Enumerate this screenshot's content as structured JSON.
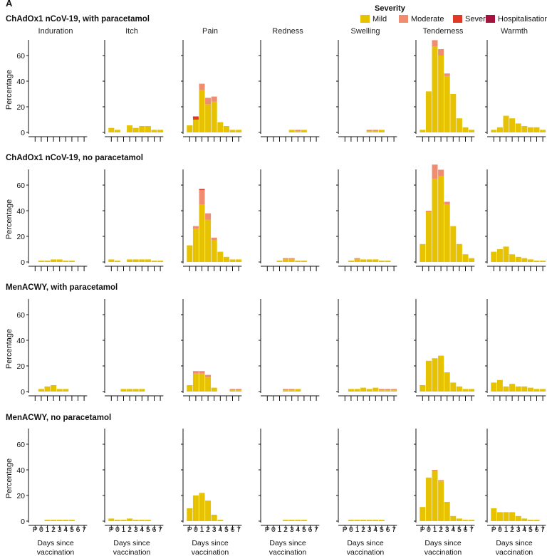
{
  "panel_label": "A",
  "legend": {
    "title": "Severity",
    "items": [
      {
        "label": "Mild",
        "color": "#e6c200"
      },
      {
        "label": "Moderate",
        "color": "#f08c6f"
      },
      {
        "label": "Severe",
        "color": "#e03a26"
      },
      {
        "label": "Hospitalisation",
        "color": "#a5123e"
      }
    ]
  },
  "chart_data": {
    "type": "bar",
    "stacked": true,
    "ylabel": "Percentage",
    "xlabel": "Days since vaccination",
    "x_ticks": [
      "P",
      "0",
      "1",
      "2",
      "3",
      "4",
      "5",
      "6",
      "7"
    ],
    "y_ticks": [
      0,
      20,
      40,
      60
    ],
    "ylim": [
      0,
      77
    ],
    "columns": [
      "Induration",
      "Itch",
      "Pain",
      "Redness",
      "Swelling",
      "Tenderness",
      "Warmth"
    ],
    "series_names": [
      "Mild",
      "Moderate",
      "Severe",
      "Hospitalisation"
    ],
    "rows": [
      {
        "title": "ChAdOx1 nCoV-19, with paracetamol",
        "panels": [
          {
            "column": "Induration",
            "mild": [
              0,
              0,
              0,
              0,
              0,
              0,
              0,
              0,
              0
            ],
            "moderate": [
              0,
              0,
              0,
              0,
              0,
              0,
              0,
              0,
              0
            ],
            "severe": [
              0,
              0,
              0,
              0,
              0,
              0,
              0,
              0,
              0
            ]
          },
          {
            "column": "Itch",
            "mild": [
              3.5,
              2,
              0,
              5.5,
              3.5,
              5,
              5,
              2,
              2
            ],
            "moderate": [
              0,
              0,
              0,
              0,
              0,
              0,
              0,
              0,
              0
            ],
            "severe": [
              0,
              0,
              0,
              0,
              0,
              0,
              0,
              0,
              0
            ]
          },
          {
            "column": "Pain",
            "mild": [
              5.5,
              10,
              33,
              22,
              24,
              8,
              5,
              2,
              2
            ],
            "moderate": [
              0,
              0,
              5,
              5,
              4,
              0,
              0,
              0,
              0
            ],
            "severe": [
              0,
              2.5,
              0,
              0,
              0,
              0,
              0,
              0,
              0
            ]
          },
          {
            "column": "Redness",
            "mild": [
              0,
              0,
              0,
              0,
              2,
              1,
              2,
              0,
              0
            ],
            "moderate": [
              0,
              0,
              0,
              0,
              0,
              1,
              0,
              0,
              0
            ],
            "severe": [
              0,
              0,
              0,
              0,
              0,
              0,
              0,
              0,
              0
            ]
          },
          {
            "column": "Swelling",
            "mild": [
              0,
              0,
              0,
              0,
              1,
              1,
              2,
              0,
              0
            ],
            "moderate": [
              0,
              0,
              0,
              0,
              1,
              1,
              0,
              0,
              0
            ],
            "severe": [
              0,
              0,
              0,
              0,
              0,
              0,
              0,
              0,
              0
            ]
          },
          {
            "column": "Tenderness",
            "mild": [
              2,
              32,
              67,
              60,
              44,
              30,
              11,
              4,
              2
            ],
            "moderate": [
              0,
              0,
              5,
              5,
              2,
              0,
              0,
              0,
              0
            ],
            "severe": [
              0,
              0,
              0,
              0,
              0,
              0,
              0,
              0,
              0
            ]
          },
          {
            "column": "Warmth",
            "mild": [
              2,
              4,
              13,
              11,
              7,
              5,
              4,
              4,
              2
            ],
            "moderate": [
              0,
              0,
              0,
              0,
              0,
              0,
              0,
              0,
              0
            ],
            "severe": [
              0,
              0,
              0,
              0,
              0,
              0,
              0,
              0,
              0
            ]
          }
        ]
      },
      {
        "title": "ChAdOx1 nCoV-19, no paracetamol",
        "panels": [
          {
            "column": "Induration",
            "mild": [
              0,
              1,
              1,
              2,
              2,
              1,
              1,
              0,
              0
            ],
            "moderate": [
              0,
              0,
              0,
              0,
              0,
              0,
              0,
              0,
              0
            ],
            "severe": [
              0,
              0,
              0,
              0,
              0,
              0,
              0,
              0,
              0
            ]
          },
          {
            "column": "Itch",
            "mild": [
              2,
              1,
              0,
              2,
              2,
              2,
              2,
              1,
              1
            ],
            "moderate": [
              0,
              0,
              0,
              0,
              0,
              0,
              0,
              0,
              0
            ],
            "severe": [
              0,
              0,
              0,
              0,
              0,
              0,
              0,
              0,
              0
            ]
          },
          {
            "column": "Pain",
            "mild": [
              13,
              26,
              45,
              33,
              17,
              8,
              4,
              2,
              2
            ],
            "moderate": [
              0,
              2,
              11,
              5,
              2,
              0,
              0,
              0,
              0
            ],
            "severe": [
              0,
              0,
              1,
              0,
              0,
              0,
              0,
              0,
              0
            ]
          },
          {
            "column": "Redness",
            "mild": [
              0,
              0,
              1,
              2,
              2,
              1,
              1,
              0,
              0
            ],
            "moderate": [
              0,
              0,
              0,
              1,
              1,
              0,
              0,
              0,
              0
            ],
            "severe": [
              0,
              0,
              0,
              0,
              0,
              0,
              0,
              0,
              0
            ]
          },
          {
            "column": "Swelling",
            "mild": [
              0,
              1,
              2,
              2,
              2,
              2,
              1,
              1,
              0
            ],
            "moderate": [
              0,
              0,
              1,
              0,
              0,
              0,
              0,
              0,
              0
            ],
            "severe": [
              0,
              0,
              0,
              0,
              0,
              0,
              0,
              0,
              0
            ]
          },
          {
            "column": "Tenderness",
            "mild": [
              14,
              39,
              65,
              67,
              45,
              28,
              14,
              6,
              3
            ],
            "moderate": [
              0,
              1,
              11,
              5,
              2,
              0,
              0,
              0,
              0
            ],
            "severe": [
              0,
              0,
              0,
              0,
              0,
              0,
              0,
              0,
              0
            ]
          },
          {
            "column": "Warmth",
            "mild": [
              8,
              10,
              12,
              6,
              4,
              3,
              2,
              1,
              1
            ],
            "moderate": [
              0,
              0,
              0,
              0,
              0,
              0,
              0,
              0,
              0
            ],
            "severe": [
              0,
              0,
              0,
              0,
              0,
              0,
              0,
              0,
              0
            ]
          }
        ]
      },
      {
        "title": "MenACWY, with paracetamol",
        "panels": [
          {
            "column": "Induration",
            "mild": [
              0,
              2,
              4,
              5,
              2,
              2,
              0,
              0,
              0
            ],
            "moderate": [
              0,
              0,
              0,
              0,
              0,
              0,
              0,
              0,
              0
            ],
            "severe": [
              0,
              0,
              0,
              0,
              0,
              0,
              0,
              0,
              0
            ]
          },
          {
            "column": "Itch",
            "mild": [
              0,
              0,
              2,
              2,
              2,
              2,
              0,
              0,
              0
            ],
            "moderate": [
              0,
              0,
              0,
              0,
              0,
              0,
              0,
              0,
              0
            ],
            "severe": [
              0,
              0,
              0,
              0,
              0,
              0,
              0,
              0,
              0
            ]
          },
          {
            "column": "Pain",
            "mild": [
              5,
              14,
              14,
              11,
              3,
              0,
              0,
              1,
              1
            ],
            "moderate": [
              0,
              2,
              2,
              2,
              0,
              0,
              0,
              1,
              1
            ],
            "severe": [
              0,
              0,
              0,
              0,
              0,
              0,
              0,
              0,
              0
            ]
          },
          {
            "column": "Redness",
            "mild": [
              0,
              0,
              0,
              1,
              1,
              2,
              0,
              0,
              0
            ],
            "moderate": [
              0,
              0,
              0,
              1,
              1,
              0,
              0,
              0,
              0
            ],
            "severe": [
              0,
              0,
              0,
              0,
              0,
              0,
              0,
              0,
              0
            ]
          },
          {
            "column": "Swelling",
            "mild": [
              0,
              2,
              2,
              3,
              2,
              3,
              1,
              1,
              1
            ],
            "moderate": [
              0,
              0,
              0,
              0,
              0,
              0,
              1,
              1,
              1
            ],
            "severe": [
              0,
              0,
              0,
              0,
              0,
              0,
              0,
              0,
              0
            ]
          },
          {
            "column": "Tenderness",
            "mild": [
              5,
              24,
              26,
              28,
              15,
              7,
              4,
              2,
              2
            ],
            "moderate": [
              0,
              0,
              0,
              0,
              0,
              0,
              0,
              0,
              0
            ],
            "severe": [
              0,
              0,
              0,
              0,
              0,
              0,
              0,
              0,
              0
            ]
          },
          {
            "column": "Warmth",
            "mild": [
              7,
              9,
              4,
              6,
              4,
              4,
              3,
              2,
              2
            ],
            "moderate": [
              0,
              0,
              0,
              0,
              0,
              0,
              0,
              0,
              0
            ],
            "severe": [
              0,
              0,
              0,
              0,
              0,
              0,
              0,
              0,
              0
            ]
          }
        ]
      },
      {
        "title": "MenACWY, no paracetamol",
        "panels": [
          {
            "column": "Induration",
            "mild": [
              0,
              0,
              1,
              1,
              1,
              1,
              1,
              0,
              0
            ],
            "moderate": [
              0,
              0,
              0,
              0,
              0,
              0,
              0,
              0,
              0
            ],
            "severe": [
              0,
              0,
              0,
              0,
              0,
              0,
              0,
              0,
              0
            ]
          },
          {
            "column": "Itch",
            "mild": [
              2,
              1,
              1,
              2,
              1,
              1,
              1,
              0,
              0
            ],
            "moderate": [
              0,
              0,
              0,
              0,
              0,
              0,
              0,
              0,
              0
            ],
            "severe": [
              0,
              0,
              0,
              0,
              0,
              0,
              0,
              0,
              0
            ]
          },
          {
            "column": "Pain",
            "mild": [
              10,
              20,
              22,
              16,
              5,
              1,
              0,
              0,
              0
            ],
            "moderate": [
              0,
              0,
              0,
              0,
              0,
              0,
              0,
              0,
              0
            ],
            "severe": [
              0,
              0,
              0,
              0,
              0,
              0,
              0,
              0,
              0
            ]
          },
          {
            "column": "Redness",
            "mild": [
              0,
              0,
              0,
              1,
              1,
              1,
              1,
              0,
              0
            ],
            "moderate": [
              0,
              0,
              0,
              0,
              0,
              0,
              0,
              0,
              0
            ],
            "severe": [
              0,
              0,
              0,
              0,
              0,
              0,
              0,
              0,
              0
            ]
          },
          {
            "column": "Swelling",
            "mild": [
              0,
              1,
              1,
              1,
              1,
              1,
              1,
              0,
              0
            ],
            "moderate": [
              0,
              0,
              0,
              0,
              0,
              0,
              0,
              0,
              0
            ],
            "severe": [
              0,
              0,
              0,
              0,
              0,
              0,
              0,
              0,
              0
            ]
          },
          {
            "column": "Tenderness",
            "mild": [
              11,
              34,
              39,
              31,
              15,
              4,
              2,
              1,
              1
            ],
            "moderate": [
              0,
              0,
              1,
              1,
              0,
              0,
              0,
              0,
              0
            ],
            "severe": [
              0,
              0,
              0,
              0,
              0,
              0,
              0,
              0,
              0
            ]
          },
          {
            "column": "Warmth",
            "mild": [
              10,
              7,
              7,
              7,
              4,
              2,
              1,
              1,
              0
            ],
            "moderate": [
              0,
              0,
              0,
              0,
              0,
              0,
              0,
              0,
              0
            ],
            "severe": [
              0,
              0,
              0,
              0,
              0,
              0,
              0,
              0,
              0
            ]
          }
        ]
      }
    ]
  }
}
